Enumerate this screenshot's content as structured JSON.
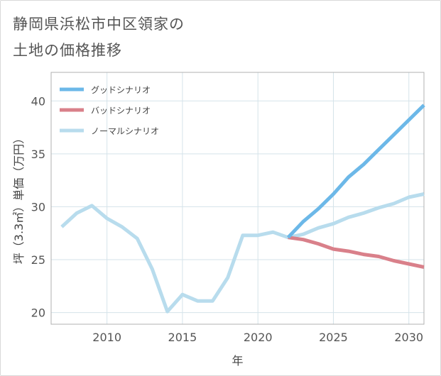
{
  "title_lines": [
    "静岡県浜松市中区領家の",
    "土地の価格推移"
  ],
  "colors": {
    "good": "#6cb8e8",
    "bad": "#d9808a",
    "normal": "#b8dced",
    "grid": "#d5e3ea",
    "plot_border": "#b0b0b0"
  },
  "chart_data": {
    "type": "line",
    "title": "静岡県浜松市中区領家の土地の価格推移",
    "xlabel": "年",
    "ylabel": "坪（3.3㎡）単価（万円）",
    "xlim": [
      2006.3,
      2031
    ],
    "ylim": [
      18.9,
      42.7
    ],
    "xticks": [
      2010,
      2015,
      2020,
      2025,
      2030
    ],
    "yticks": [
      20,
      25,
      30,
      35,
      40
    ],
    "grid": true,
    "legend_position": "top-left",
    "series": [
      {
        "key": "good",
        "name": "グッドシナリオ",
        "x": [
          2022,
          2023,
          2024,
          2025,
          2026,
          2027,
          2028,
          2029,
          2030,
          2031
        ],
        "y": [
          27.1,
          28.6,
          29.8,
          31.2,
          32.8,
          34.0,
          35.4,
          36.8,
          38.2,
          39.6
        ]
      },
      {
        "key": "bad",
        "name": "バッドシナリオ",
        "x": [
          2022,
          2023,
          2024,
          2025,
          2026,
          2027,
          2028,
          2029,
          2030,
          2031
        ],
        "y": [
          27.1,
          26.9,
          26.5,
          26.0,
          25.8,
          25.5,
          25.3,
          24.9,
          24.6,
          24.3
        ]
      },
      {
        "key": "normal",
        "name": "ノーマルシナリオ",
        "x": [
          2007,
          2008,
          2009,
          2010,
          2011,
          2012,
          2013,
          2014,
          2015,
          2016,
          2017,
          2018,
          2019,
          2020,
          2021,
          2022,
          2023,
          2024,
          2025,
          2026,
          2027,
          2028,
          2029,
          2030,
          2031
        ],
        "y": [
          28.1,
          29.4,
          30.1,
          28.9,
          28.1,
          27.0,
          24.1,
          20.1,
          21.7,
          21.1,
          21.1,
          23.3,
          27.3,
          27.3,
          27.6,
          27.1,
          27.4,
          28.0,
          28.4,
          29.0,
          29.4,
          29.9,
          30.3,
          30.9,
          31.2
        ]
      }
    ]
  }
}
